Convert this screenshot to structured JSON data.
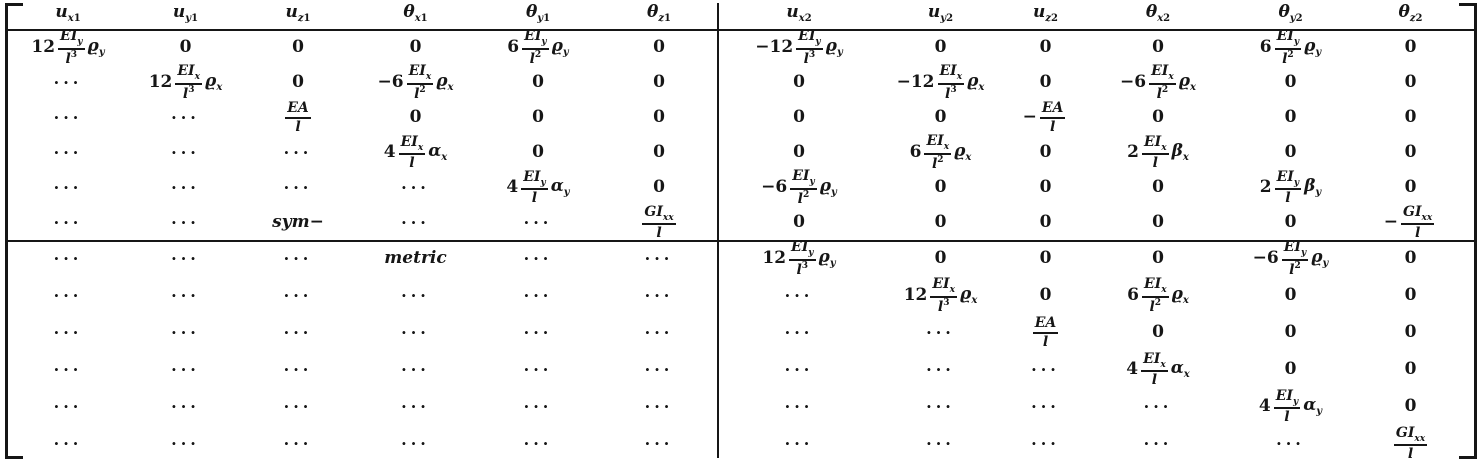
{
  "figure": {
    "kind": "element-stiffness-matrix",
    "symmetry_note_parts": [
      "sym−",
      "metric"
    ]
  },
  "colors": {
    "ink": "#161616",
    "paper": "#ffffff"
  },
  "matrix": {
    "headers": [
      "u_x1",
      "u_y1",
      "u_z1",
      "θ_x1",
      "θ_y1",
      "θ_z1",
      "u_x2",
      "u_y2",
      "u_z2",
      "θ_x2",
      "θ_y2",
      "θ_z2"
    ],
    "rows": [
      [
        "12{EI_y/l^3}ϱ_y",
        "0",
        "0",
        "0",
        "6{EI_y/l^2}ϱ_y",
        "0",
        "−12{EI_y/l^3}ϱ_y",
        "0",
        "0",
        "0",
        "6{EI_y/l^2}ϱ_y",
        "0"
      ],
      [
        "⋯",
        "12{EI_x/l^3}ϱ_x",
        "0",
        "−6{EI_x/l^2}ϱ_x",
        "0",
        "0",
        "0",
        "−12{EI_x/l^3}ϱ_x",
        "0",
        "−6{EI_x/l^2}ϱ_x",
        "0",
        "0"
      ],
      [
        "⋯",
        "⋯",
        "{EA/l}",
        "0",
        "0",
        "0",
        "0",
        "0",
        "−{EA/l}",
        "0",
        "0",
        "0"
      ],
      [
        "⋯",
        "⋯",
        "⋯",
        "4{EI_x/l}α_x",
        "0",
        "0",
        "0",
        "6{EI_x/l^2}ϱ_x",
        "0",
        "2{EI_x/l}β_x",
        "0",
        "0"
      ],
      [
        "⋯",
        "⋯",
        "⋯",
        "⋯",
        "4{EI_y/l}α_y",
        "0",
        "−6{EI_y/l^2}ϱ_y",
        "0",
        "0",
        "0",
        "2{EI_y/l}β_y",
        "0"
      ],
      [
        "⋯",
        "⋯",
        "sym−",
        "⋯",
        "⋯",
        "{GI_xx/l}",
        "0",
        "0",
        "0",
        "0",
        "0",
        "−{GI_xx/l}"
      ],
      [
        "⋯",
        "⋯",
        "⋯",
        "metric",
        "⋯",
        "⋯",
        "12{EI_y/l^3}ϱ_y",
        "0",
        "0",
        "0",
        "−6{EI_y/l^2}ϱ_y",
        "0"
      ],
      [
        "⋯",
        "⋯",
        "⋯",
        "⋯",
        "⋯",
        "⋯",
        "⋯",
        "12{EI_x/l^3}ϱ_x",
        "0",
        "6{EI_x/l^2}ϱ_x",
        "0",
        "0"
      ],
      [
        "⋯",
        "⋯",
        "⋯",
        "⋯",
        "⋯",
        "⋯",
        "⋯",
        "⋯",
        "{EA/l}",
        "0",
        "0",
        "0"
      ],
      [
        "⋯",
        "⋯",
        "⋯",
        "⋯",
        "⋯",
        "⋯",
        "⋯",
        "⋯",
        "⋯",
        "4{EI_x/l}α_x",
        "0",
        "0"
      ],
      [
        "⋯",
        "⋯",
        "⋯",
        "⋯",
        "⋯",
        "⋯",
        "⋯",
        "⋯",
        "⋯",
        "⋯",
        "4{EI_y/l}α_y",
        "0"
      ],
      [
        "⋯",
        "⋯",
        "⋯",
        "⋯",
        "⋯",
        "⋯",
        "⋯",
        "⋯",
        "⋯",
        "⋯",
        "⋯",
        "{GI_xx/l}"
      ]
    ]
  }
}
